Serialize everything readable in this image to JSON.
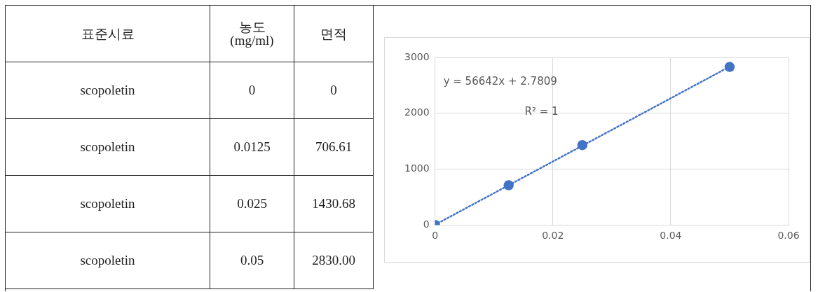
{
  "chart_data": [
    {
      "type": "heatmap",
      "ylabel": "표준시료",
      "categories": [
        "농도\n(mg/ml)",
        "면적"
      ],
      "y_categories": [
        "scopoletin",
        "scopoletin",
        "scopoletin",
        "scopoletin"
      ],
      "cells": [
        [
          0,
          0
        ],
        [
          0.0125,
          706.61
        ],
        [
          0.025,
          1430.68
        ],
        [
          0.05,
          2830
        ]
      ],
      "cell_labels": [
        [
          "0",
          "0"
        ],
        [
          "0.0125",
          "706.61"
        ],
        [
          "0.025",
          "1430.68"
        ],
        [
          "0.05",
          "2830.00"
        ]
      ]
    },
    {
      "type": "scatter",
      "series": [
        {
          "type": "scatter",
          "color": "#4472c4",
          "marker": "circle",
          "x": [
            0,
            0.0125,
            0.025,
            0.05
          ],
          "values": [
            0,
            710,
            1430,
            2830
          ]
        },
        {
          "type": "line",
          "color": "#4472c4",
          "marker": "none",
          "line_style": "dotted",
          "x": [
            0,
            0.05
          ],
          "values": [
            2.78,
            2835
          ]
        }
      ],
      "annotations": [
        "y = 56642x + 2.7809",
        "R² = 1"
      ],
      "xlim": [
        0,
        0.06
      ],
      "xticks": [
        0,
        0.02,
        0.04,
        0.06
      ],
      "ylim": [
        0,
        3000
      ],
      "yticks": [
        0,
        1000,
        2000,
        3000
      ],
      "grid": true
    }
  ]
}
